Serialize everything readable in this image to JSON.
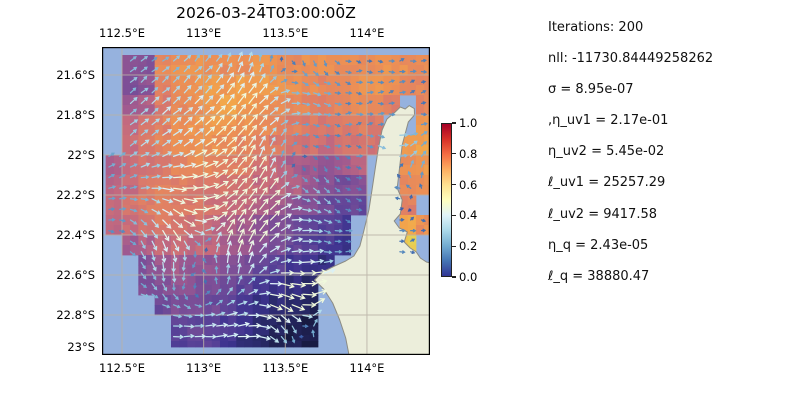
{
  "figure": {
    "title": "2026-03-24̄T03:00:00̄Z"
  },
  "stats_panel": {
    "lines": [
      "Iterations: 200",
      "nll: -11730.84449258262",
      "σ = 8.95e-07",
      ",η_uv1 = 2.17e-01",
      "η_uv2 = 5.45e-02",
      "ℓ_uv1 = 25257.29",
      "ℓ_uv2 = 9417.58",
      "η_q = 2.43e-05",
      "ℓ_q = 38880.47"
    ]
  },
  "chart_data": {
    "type": "heatmap",
    "subtype": "geographic scalar field with quiver (current vector) overlay and coastline",
    "title": "2026-03-24̄T03:00:00̄Z",
    "axes": {
      "lon_min": 112.3775,
      "lon_max": 114.3861,
      "lat_top": 21.46,
      "lat_bottom": 23.0,
      "xticks": [
        112.5,
        113.0,
        113.5,
        114.0
      ],
      "xtick_labels": [
        "112.5°E",
        "113°E",
        "113.5°E",
        "114°E"
      ],
      "yticks": [
        21.6,
        21.8,
        22.0,
        22.2,
        22.4,
        22.6,
        22.8,
        23.0
      ],
      "ytick_labels": [
        "21.6°S",
        "21.8°S",
        "22°S",
        "22.2°S",
        "22.4°S",
        "22.6°S",
        "22.8°S",
        "23°S"
      ],
      "grid": true
    },
    "colorbar": {
      "cmap": "RdYlBu_r",
      "vmin": 0.0,
      "vmax": 1.0,
      "ticks": [
        0.0,
        0.2,
        0.4,
        0.6,
        0.8,
        1.0
      ],
      "tick_labels": [
        "0.0",
        "0.2",
        "0.4",
        "0.6",
        "0.8",
        "1.0"
      ],
      "stops": [
        [
          0.0,
          "#313695"
        ],
        [
          0.1,
          "#4575b4"
        ],
        [
          0.2,
          "#74add1"
        ],
        [
          0.3,
          "#abd9e9"
        ],
        [
          0.4,
          "#e0f3f8"
        ],
        [
          0.5,
          "#ffffbf"
        ],
        [
          0.6,
          "#fee090"
        ],
        [
          0.7,
          "#fdae61"
        ],
        [
          0.8,
          "#f46d43"
        ],
        [
          0.9,
          "#d73027"
        ],
        [
          1.0,
          "#a50026"
        ]
      ],
      "position": "right of map"
    },
    "colors": {
      "ocean": "#96b2de",
      "land": "#eceedb",
      "coastline": "#8c8c84",
      "gridline": "#b9b1a6",
      "frame": "#000000"
    },
    "field_colormap_observed": [
      [
        0.0,
        "#171a40"
      ],
      [
        0.1,
        "#2a2a6b"
      ],
      [
        0.2,
        "#3d3390"
      ],
      [
        0.3,
        "#5d4498"
      ],
      [
        0.4,
        "#7e4f97"
      ],
      [
        0.5,
        "#a05a8f"
      ],
      [
        0.6,
        "#c46a7e"
      ],
      [
        0.7,
        "#dd7c68"
      ],
      [
        0.8,
        "#ec9055"
      ],
      [
        0.9,
        "#f2a54b"
      ],
      [
        0.95,
        "#f3bc4e"
      ],
      [
        1.0,
        "#d8e458"
      ]
    ],
    "field_grid": {
      "lon0": 112.4,
      "dlon": 0.1,
      "lat0": 21.5,
      "dlat": 0.1,
      "note": "normalized field intensity estimated from pixel colors; null = no data / land",
      "values": [
        [
          null,
          0.42,
          0.4,
          0.75,
          0.8,
          0.82,
          0.8,
          0.78,
          0.8,
          0.82,
          0.8,
          0.78,
          0.8,
          0.82,
          0.8,
          0.78,
          0.8,
          0.82,
          0.8,
          0.78
        ],
        [
          null,
          0.38,
          0.45,
          0.72,
          0.78,
          0.82,
          0.85,
          0.85,
          0.88,
          0.85,
          0.82,
          0.8,
          0.78,
          0.75,
          0.78,
          0.8,
          0.82,
          0.8,
          0.78,
          0.75
        ],
        [
          null,
          0.5,
          0.55,
          0.7,
          0.75,
          0.8,
          0.85,
          0.88,
          0.85,
          0.82,
          0.8,
          0.78,
          0.75,
          0.72,
          0.75,
          0.78,
          0.75,
          0.72,
          null,
          0.75
        ],
        [
          null,
          0.6,
          0.65,
          0.72,
          0.78,
          0.82,
          0.85,
          0.82,
          0.8,
          0.78,
          0.75,
          0.72,
          0.7,
          0.68,
          0.7,
          0.72,
          0.7,
          null,
          null,
          0.85
        ],
        [
          null,
          0.62,
          0.68,
          0.75,
          0.8,
          0.82,
          0.8,
          0.78,
          0.75,
          0.72,
          0.7,
          0.68,
          0.65,
          0.62,
          0.65,
          0.68,
          0.65,
          null,
          0.85,
          0.88
        ],
        [
          0.55,
          0.6,
          0.65,
          0.7,
          0.75,
          0.78,
          0.75,
          0.72,
          0.7,
          0.65,
          0.6,
          0.55,
          0.5,
          0.45,
          0.5,
          0.55,
          null,
          null,
          0.8,
          0.85
        ],
        [
          0.58,
          0.62,
          0.68,
          0.72,
          0.72,
          0.7,
          0.68,
          0.66,
          0.64,
          0.6,
          0.58,
          0.55,
          0.5,
          0.42,
          0.38,
          0.4,
          null,
          null,
          0.75,
          0.8
        ],
        [
          0.6,
          0.65,
          0.7,
          0.72,
          0.7,
          0.68,
          0.65,
          0.62,
          0.6,
          0.55,
          0.5,
          0.45,
          0.4,
          0.35,
          0.3,
          0.32,
          null,
          null,
          0.72,
          null
        ],
        [
          0.58,
          0.62,
          0.68,
          0.7,
          0.68,
          0.65,
          0.6,
          0.55,
          0.5,
          0.45,
          0.4,
          0.35,
          0.3,
          0.28,
          0.25,
          null,
          null,
          null,
          0.92,
          0.8
        ],
        [
          null,
          0.5,
          0.55,
          0.6,
          0.62,
          0.6,
          0.58,
          0.52,
          0.48,
          0.42,
          0.38,
          0.32,
          0.28,
          0.25,
          0.2,
          null,
          null,
          null,
          0.95,
          null
        ],
        [
          null,
          null,
          0.42,
          0.48,
          0.5,
          0.48,
          0.45,
          0.42,
          0.38,
          0.32,
          0.28,
          0.22,
          0.18,
          0.15,
          null,
          null,
          null,
          null,
          null,
          null
        ],
        [
          null,
          null,
          0.4,
          0.42,
          0.45,
          0.42,
          0.4,
          0.35,
          0.3,
          0.25,
          0.2,
          0.15,
          0.1,
          null,
          null,
          null,
          null,
          null,
          null,
          null
        ],
        [
          null,
          null,
          null,
          0.35,
          0.4,
          0.38,
          0.35,
          0.3,
          0.25,
          0.18,
          0.12,
          0.08,
          0.05,
          null,
          null,
          null,
          null,
          null,
          null,
          null
        ],
        [
          null,
          null,
          null,
          null,
          0.3,
          0.32,
          0.3,
          0.25,
          0.2,
          0.12,
          0.08,
          0.04,
          0.03,
          null,
          null,
          null,
          null,
          null,
          null,
          null
        ],
        [
          null,
          null,
          null,
          null,
          0.28,
          0.3,
          0.28,
          0.22,
          0.15,
          0.1,
          0.06,
          0.03,
          0.02,
          null,
          null,
          null,
          null,
          null,
          null,
          null
        ]
      ]
    },
    "land_polygon_lonlat": [
      [
        114.234,
        21.77
      ],
      [
        114.259,
        21.753
      ],
      [
        114.29,
        21.768
      ],
      [
        114.291,
        21.8
      ],
      [
        114.253,
        21.835
      ],
      [
        114.216,
        21.95
      ],
      [
        114.198,
        22.075
      ],
      [
        114.185,
        22.165
      ],
      [
        114.216,
        22.225
      ],
      [
        114.204,
        22.295
      ],
      [
        114.167,
        22.33
      ],
      [
        114.198,
        22.365
      ],
      [
        114.247,
        22.385
      ],
      [
        114.228,
        22.435
      ],
      [
        114.265,
        22.465
      ],
      [
        114.302,
        22.485
      ],
      [
        114.327,
        22.515
      ],
      [
        114.364,
        22.535
      ],
      [
        114.43,
        22.548
      ],
      [
        114.43,
        23.02
      ],
      [
        113.895,
        23.02
      ],
      [
        113.87,
        22.915
      ],
      [
        113.833,
        22.825
      ],
      [
        113.79,
        22.74
      ],
      [
        113.735,
        22.67
      ],
      [
        113.679,
        22.625
      ],
      [
        113.728,
        22.585
      ],
      [
        113.802,
        22.555
      ],
      [
        113.87,
        22.53
      ],
      [
        113.92,
        22.505
      ],
      [
        113.957,
        22.455
      ],
      [
        113.981,
        22.38
      ],
      [
        114.012,
        22.275
      ],
      [
        114.031,
        22.175
      ],
      [
        114.049,
        22.075
      ],
      [
        114.068,
        21.975
      ],
      [
        114.093,
        21.875
      ],
      [
        114.123,
        21.82
      ],
      [
        114.173,
        21.785
      ],
      [
        114.204,
        21.76
      ]
    ],
    "quiver": {
      "grid_dlon": 0.066,
      "grid_dlat": 0.053,
      "color_by": "vector speed mapped onto RdYlBu_r 0–0.5 (dark blue = slow, near white = fast)",
      "base_u": 0.16,
      "jets": [
        {
          "lon": 112.98,
          "lat": 21.86,
          "su": 0.32,
          "sv": 0.5,
          "rlon": 0.75,
          "rlat": 0.42
        },
        {
          "lon": 113.1,
          "lat": 22.82,
          "su": 0.85,
          "sv": 0.05,
          "rlon": 0.6,
          "rlat": 0.3
        }
      ],
      "vortices": [
        {
          "lon": 113.0,
          "lat": 22.42,
          "s": 0.7,
          "r": 0.3,
          "dir": 1
        },
        {
          "lon": 113.5,
          "lat": 22.15,
          "s": 0.35,
          "r": 0.25,
          "dir": -1
        },
        {
          "lon": 113.62,
          "lat": 22.8,
          "s": 0.55,
          "r": 0.2,
          "dir": 1
        },
        {
          "lon": 113.45,
          "lat": 21.62,
          "s": 0.3,
          "r": 0.28,
          "dir": -1
        },
        {
          "lon": 114.2,
          "lat": 22.05,
          "s": 0.3,
          "r": 0.15,
          "dir": 1
        }
      ]
    }
  }
}
